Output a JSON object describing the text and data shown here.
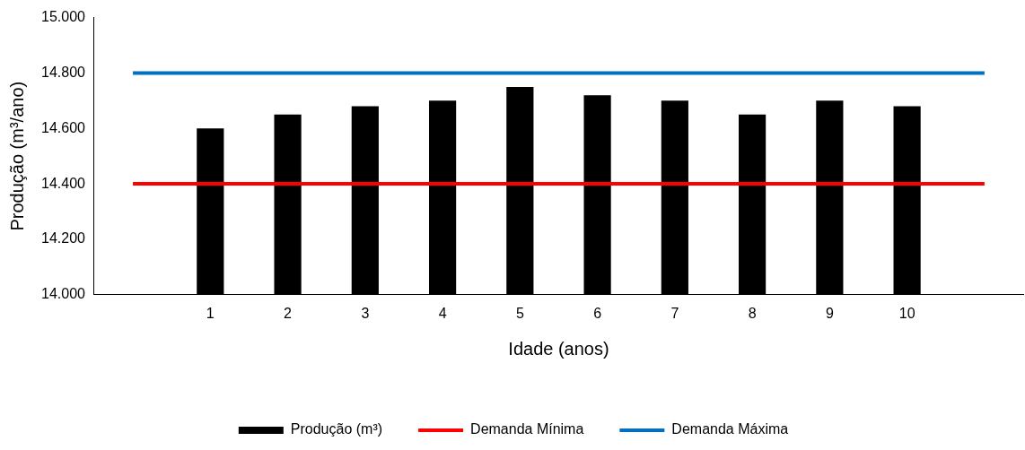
{
  "chart_data": {
    "type": "bar",
    "xlabel": "Idade (anos)",
    "ylabel": "Produção (m³/ano)",
    "categories": [
      null,
      "1",
      "2",
      "3",
      "4",
      "5",
      "6",
      "7",
      "8",
      "9",
      "10",
      null
    ],
    "series": [
      {
        "name": "Produção (m³)",
        "color": "#000000",
        "values": [
          null,
          14600,
          14650,
          14680,
          14700,
          14750,
          14720,
          14700,
          14650,
          14700,
          14680,
          null
        ]
      },
      {
        "name": "Demanda Mínima",
        "type": "line",
        "color": "#ff0000",
        "values": [
          14400,
          14400,
          14400,
          14400,
          14400,
          14400,
          14400,
          14400,
          14400,
          14400,
          14400,
          14400
        ]
      },
      {
        "name": "Demanda Máxima",
        "type": "line",
        "color": "#0070c0",
        "values": [
          14800,
          14800,
          14800,
          14800,
          14800,
          14800,
          14800,
          14800,
          14800,
          14800,
          14800,
          14800
        ]
      }
    ],
    "ylim": [
      14000,
      15000
    ],
    "yticks": [
      {
        "value": 14000,
        "label": "14.000"
      },
      {
        "value": 14200,
        "label": "14.200"
      },
      {
        "value": 14400,
        "label": "14.400"
      },
      {
        "value": 14600,
        "label": "14.600"
      },
      {
        "value": 14800,
        "label": "14.800"
      },
      {
        "value": 15000,
        "label": "15.000"
      }
    ],
    "grid": false,
    "legend": "bottom"
  }
}
